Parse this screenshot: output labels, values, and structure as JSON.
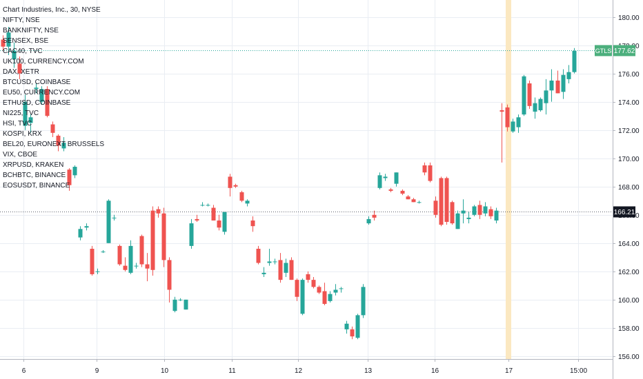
{
  "header": {
    "title": "Chart Industries, Inc., 30, NYSE"
  },
  "symbol_list": [
    "NIFTY, NSE",
    "BANKNIFTY, NSE",
    "SENSEX, BSE",
    "CAC40, TVC",
    "UK100, CURRENCY.COM",
    "DAX, XETR",
    "BTCUSD, COINBASE",
    "EU50, CURRENCY.COM",
    "ETHUSD, COINBASE",
    "NI225, TVC",
    "HSI, TVC",
    "KOSPI, KRX",
    "BEL20, EURONEXT BRUSSELS",
    "VIX, CBOE",
    "XRPUSD, KRAKEN",
    "BCHBTC, BINANCE",
    "EOSUSDT, BINANCE"
  ],
  "price_axis": {
    "ticks": [
      "180.00",
      "178.00",
      "176.00",
      "174.00",
      "172.00",
      "170.00",
      "168.00",
      "166.00",
      "164.00",
      "162.00",
      "160.00",
      "158.00",
      "156.00"
    ]
  },
  "time_axis": {
    "ticks": [
      "6",
      "9",
      "10",
      "11",
      "12",
      "13",
      "16",
      "17",
      "15:00"
    ]
  },
  "price_labels": {
    "ticker": "GTLS",
    "last_price": "177.62",
    "reference_price": "166.21"
  },
  "colors": {
    "up": "#26a69a",
    "down": "#ef5350",
    "grid": "#e9edf3",
    "highlight_bar": "#fbe8c1",
    "last_price_label": "#4caf7d",
    "reference_label": "#131722"
  },
  "chart_data": {
    "type": "candlestick",
    "ylim": [
      155.8,
      181.2
    ],
    "ohlc": [
      [
        178.4,
        178.7,
        177.6,
        177.9
      ],
      [
        177.9,
        179.3,
        177.3,
        178.9
      ],
      [
        177.0,
        178.2,
        176.4,
        177.6
      ],
      [
        176.7,
        177.2,
        175.6,
        176.0
      ],
      [
        172.3,
        174.5,
        172.0,
        174.0
      ],
      [
        172.5,
        173.1,
        171.8,
        172.9
      ],
      [
        174.9,
        175.3,
        174.6,
        175.0
      ],
      [
        174.0,
        175.1,
        173.8,
        174.9
      ],
      [
        174.9,
        175.1,
        172.9,
        173.0
      ],
      [
        172.4,
        172.6,
        171.5,
        171.8
      ],
      [
        171.6,
        171.7,
        170.5,
        170.9
      ],
      [
        170.7,
        171.5,
        170.5,
        171.1
      ],
      [
        169.2,
        169.3,
        167.7,
        168.1
      ],
      [
        168.8,
        169.5,
        168.6,
        169.4
      ],
      [
        164.4,
        165.2,
        164.2,
        165.0
      ],
      [
        165.1,
        165.4,
        164.9,
        165.2
      ],
      [
        163.6,
        163.8,
        161.7,
        161.8
      ],
      [
        162.0,
        162.2,
        161.8,
        162.0
      ],
      [
        163.4,
        163.5,
        163.3,
        163.4
      ],
      [
        164.0,
        167.1,
        164.0,
        167.0
      ],
      [
        165.8,
        166.0,
        165.6,
        165.8
      ],
      [
        163.8,
        163.9,
        162.4,
        162.5
      ],
      [
        162.4,
        163.0,
        162.0,
        162.1
      ],
      [
        161.9,
        164.2,
        161.8,
        163.8
      ],
      [
        162.4,
        162.6,
        162.2,
        162.4
      ],
      [
        164.5,
        164.6,
        162.3,
        162.5
      ],
      [
        162.5,
        163.3,
        161.3,
        162.2
      ],
      [
        166.3,
        166.6,
        161.7,
        162.1
      ],
      [
        166.4,
        166.6,
        165.8,
        166.1
      ],
      [
        166.1,
        166.5,
        162.3,
        162.8
      ],
      [
        162.8,
        163.0,
        159.8,
        160.7
      ],
      [
        159.2,
        160.2,
        159.1,
        160.0
      ],
      [
        160.0,
        160.1,
        159.9,
        160.0
      ],
      [
        159.3,
        160.0,
        159.3,
        160.0
      ],
      [
        163.8,
        165.7,
        163.6,
        165.4
      ],
      [
        165.7,
        166.0,
        165.5,
        165.6
      ],
      [
        166.7,
        166.9,
        166.6,
        166.7
      ],
      [
        166.7,
        166.8,
        166.6,
        166.7
      ],
      [
        166.5,
        166.7,
        165.6,
        165.6
      ],
      [
        165.6,
        166.0,
        164.9,
        165.1
      ],
      [
        164.8,
        166.2,
        164.6,
        166.2
      ],
      [
        168.7,
        168.9,
        167.3,
        167.9
      ],
      [
        168.1,
        168.2,
        167.9,
        168.0
      ],
      [
        167.6,
        167.7,
        166.9,
        167.0
      ],
      [
        166.8,
        167.1,
        166.6,
        167.0
      ],
      [
        165.6,
        165.9,
        164.8,
        165.2
      ],
      [
        163.6,
        163.8,
        162.5,
        162.6
      ],
      [
        161.8,
        162.3,
        161.6,
        161.9
      ],
      [
        162.6,
        163.6,
        162.4,
        162.7
      ],
      [
        162.7,
        162.9,
        162.5,
        162.7
      ],
      [
        162.8,
        163.3,
        161.2,
        161.4
      ],
      [
        161.9,
        162.9,
        161.6,
        162.6
      ],
      [
        162.8,
        163.0,
        161.4,
        161.4
      ],
      [
        161.4,
        161.5,
        159.9,
        160.2
      ],
      [
        159.0,
        161.5,
        158.9,
        161.4
      ],
      [
        161.8,
        162.0,
        161.2,
        161.4
      ],
      [
        161.4,
        161.6,
        160.8,
        160.9
      ],
      [
        160.9,
        161.0,
        160.4,
        160.5
      ],
      [
        160.6,
        161.2,
        159.6,
        159.7
      ],
      [
        159.9,
        160.6,
        159.8,
        160.4
      ],
      [
        160.5,
        161.1,
        160.3,
        160.7
      ],
      [
        160.8,
        160.9,
        160.5,
        160.8
      ],
      [
        157.9,
        158.5,
        157.6,
        158.3
      ],
      [
        157.9,
        158.1,
        157.2,
        157.4
      ],
      [
        157.3,
        159.0,
        157.2,
        158.9
      ],
      [
        158.9,
        161.1,
        158.7,
        160.9
      ],
      [
        165.4,
        165.9,
        165.3,
        165.7
      ],
      [
        166.0,
        166.3,
        165.6,
        165.8
      ],
      [
        167.9,
        169.0,
        167.8,
        168.8
      ],
      [
        168.6,
        168.9,
        168.4,
        168.7
      ],
      [
        167.8,
        167.9,
        167.6,
        167.7
      ],
      [
        168.2,
        169.0,
        168.0,
        169.0
      ],
      [
        167.7,
        167.8,
        167.4,
        167.5
      ],
      [
        167.3,
        167.4,
        167.1,
        167.1
      ],
      [
        167.1,
        167.2,
        166.9,
        166.9
      ],
      [
        166.9,
        167.0,
        166.8,
        166.9
      ],
      [
        169.5,
        169.7,
        168.8,
        169.0
      ],
      [
        169.5,
        169.7,
        168.3,
        168.4
      ],
      [
        167.0,
        167.3,
        165.8,
        166.0
      ],
      [
        168.6,
        168.7,
        165.2,
        165.3
      ],
      [
        168.6,
        168.7,
        165.3,
        165.5
      ],
      [
        166.9,
        167.0,
        165.3,
        165.4
      ],
      [
        165.0,
        166.3,
        165.0,
        166.1
      ],
      [
        166.1,
        167.1,
        165.4,
        166.3
      ],
      [
        165.7,
        166.2,
        165.4,
        165.8
      ],
      [
        166.0,
        166.7,
        165.9,
        166.6
      ],
      [
        166.7,
        167.0,
        165.7,
        166.0
      ],
      [
        166.1,
        166.9,
        165.9,
        166.6
      ],
      [
        166.4,
        166.6,
        165.7,
        165.9
      ],
      [
        165.6,
        166.5,
        165.4,
        166.3
      ],
      [
        173.4,
        173.9,
        169.7,
        173.3
      ],
      [
        173.6,
        173.8,
        171.9,
        172.2
      ],
      [
        171.9,
        172.8,
        171.8,
        172.6
      ],
      [
        172.2,
        173.1,
        171.8,
        172.9
      ],
      [
        173.1,
        175.9,
        173.0,
        175.8
      ],
      [
        175.3,
        175.5,
        173.5,
        173.7
      ],
      [
        173.3,
        174.3,
        172.8,
        173.9
      ],
      [
        173.4,
        174.3,
        173.3,
        174.2
      ],
      [
        173.9,
        175.6,
        173.1,
        174.8
      ],
      [
        174.8,
        176.3,
        174.0,
        175.5
      ],
      [
        175.5,
        176.2,
        174.6,
        174.6
      ],
      [
        174.7,
        176.3,
        174.2,
        175.9
      ],
      [
        175.6,
        176.6,
        175.3,
        176.1
      ],
      [
        176.1,
        177.8,
        176.0,
        177.6
      ]
    ]
  }
}
